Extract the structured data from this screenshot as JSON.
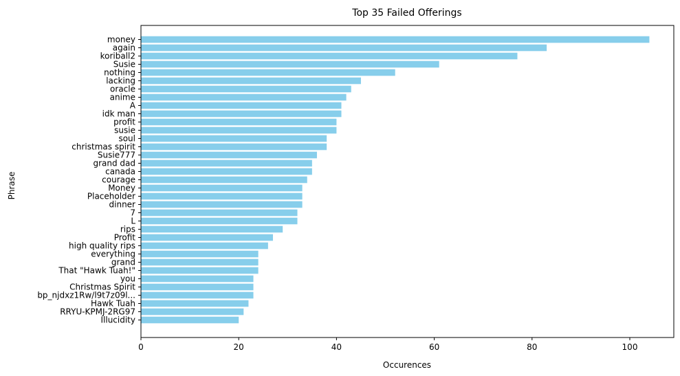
{
  "chart_data": {
    "type": "bar",
    "orientation": "horizontal",
    "title": "Top 35 Failed Offerings",
    "xlabel": "Occurences",
    "ylabel": "Phrase",
    "xlim": [
      0,
      109
    ],
    "xticks": [
      0,
      20,
      40,
      60,
      80,
      100
    ],
    "bar_color": "#87ceeb",
    "grid": false,
    "categories": [
      "money",
      "again",
      "koriball2",
      "Susie",
      "nothing",
      "lacking",
      "oracle",
      "anime",
      "A",
      "idk man",
      "profit",
      "susie",
      "soul",
      "christmas spirit",
      "Susie777",
      "grand dad",
      "canada",
      "courage",
      "Money",
      "Placeholder",
      "dinner",
      "7",
      "L",
      "rips",
      "Profit",
      "high quality rips",
      "everything",
      "grand",
      "That \"Hawk Tuah!\"",
      "you",
      "Christmas Spirit",
      "bp_njdxz1Rw/l9t7z09l...",
      "Hawk Tuah",
      "RRYU-KPMJ-2RG97",
      "Illucidity"
    ],
    "values": [
      104,
      83,
      77,
      61,
      52,
      45,
      43,
      42,
      41,
      41,
      40,
      40,
      38,
      38,
      36,
      35,
      35,
      34,
      33,
      33,
      33,
      32,
      32,
      29,
      27,
      26,
      24,
      24,
      24,
      23,
      23,
      23,
      22,
      21,
      20
    ]
  }
}
